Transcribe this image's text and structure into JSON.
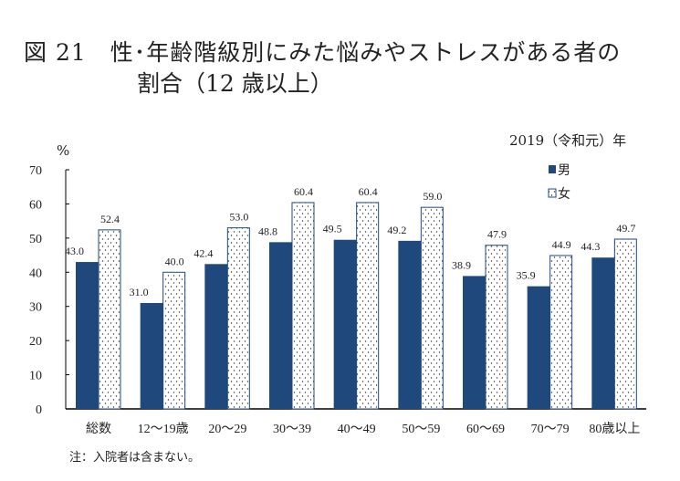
{
  "title_line1": "図 21　性･年齢階級別にみた悩みやストレスがある者の",
  "title_line2": "割合（12 歳以上）",
  "year_label": "2019（令和元）年",
  "note": "注：入院者は含まない。",
  "colors": {
    "male": "#1f497d",
    "female_border": "#1f497d",
    "female_dots": "#333333"
  },
  "chart_data": {
    "type": "bar",
    "ylabel": "%",
    "ylim": [
      0,
      70
    ],
    "yticks": [
      0,
      10,
      20,
      30,
      40,
      50,
      60,
      70
    ],
    "grid": false,
    "legend_position": "top-right",
    "categories": [
      "総数",
      "12〜19歳",
      "20〜29",
      "30〜39",
      "40〜49",
      "50〜59",
      "60〜69",
      "70〜79",
      "80歳以上"
    ],
    "series": [
      {
        "name": "男",
        "values": [
          43.0,
          31.0,
          42.4,
          48.8,
          49.5,
          49.2,
          38.9,
          35.9,
          44.3
        ]
      },
      {
        "name": "女",
        "values": [
          52.4,
          40.0,
          53.0,
          60.4,
          60.4,
          59.0,
          47.9,
          44.9,
          49.7
        ]
      }
    ]
  }
}
